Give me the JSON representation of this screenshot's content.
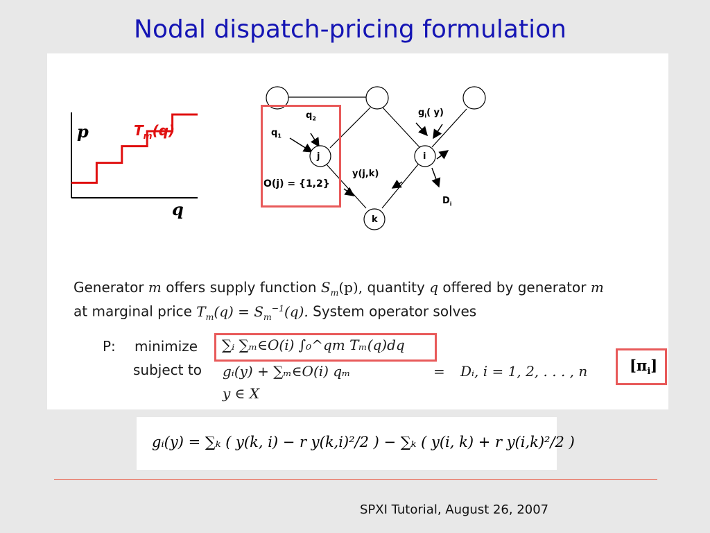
{
  "slide": {
    "title": "Nodal dispatch-pricing formulation",
    "footer": "SPXI Tutorial, August 26, 2007"
  },
  "step_chart": {
    "y_axis_label": "p",
    "x_axis_label": "q",
    "curve_label_main": "T",
    "curve_label_sub": "m",
    "curve_label_arg": "(q)",
    "step_levels": [
      0.18,
      0.42,
      0.62,
      0.8,
      1.0
    ],
    "colors": {
      "curve": "#e01010",
      "label": "#e01010",
      "axes": "#000000"
    }
  },
  "network": {
    "nodes": [
      {
        "id": "top-left",
        "label": ""
      },
      {
        "id": "top-middle",
        "label": ""
      },
      {
        "id": "top-right",
        "label": ""
      },
      {
        "id": "j",
        "label": "j"
      },
      {
        "id": "i",
        "label": "i"
      },
      {
        "id": "k",
        "label": "k"
      }
    ],
    "labels": {
      "q2": "q",
      "q2_sub": "2",
      "q1": "q",
      "q1_sub": "1",
      "gi": "g",
      "gi_sub": "i",
      "gi_arg": "( y)",
      "yjk": "y(j,k)",
      "oj": "O(j) = {1,2}",
      "di": "D",
      "di_sub": "i"
    }
  },
  "text": {
    "line1_a": "Generator",
    "line1_m": "m",
    "line1_b": "offers supply function",
    "line1_S": "S",
    "line1_S_sub": "m",
    "line1_S_arg": "(p),",
    "line1_c": "quantity",
    "line1_q": "q",
    "line1_d": "offered by generator",
    "line1_m2": "m",
    "line2_a": "at marginal price",
    "line2_T": "T",
    "line2_T_sub": "m",
    "line2_T_arg": "(q) = S",
    "line2_S_sub": "m",
    "line2_S_sup": "−1",
    "line2_end": "(q).",
    "line2_b": "System operator solves"
  },
  "problem": {
    "p_label": "P:",
    "minimize_label": "minimize",
    "objective": "∑ᵢ ∑ₘ∈O(i) ∫₀^qm Tₘ(q)dq",
    "subject_to_label": "subject to",
    "constraint_lhs": "gᵢ(y) + ∑ₘ∈O(i) qₘ",
    "constraint_eq": "=",
    "constraint_rhs": "Dᵢ,   i = 1, 2, . . . , n",
    "constraint2": "y ∈ X",
    "multiplier": "[π",
    "multiplier_sub": "i",
    "multiplier_close": "]"
  },
  "formula": {
    "text": "gᵢ(y) = ∑ₖ ( y(k, i) − r y(k,i)²/2 ) − ∑ₖ ( y(i, k) + r y(i,k)²/2 )"
  }
}
